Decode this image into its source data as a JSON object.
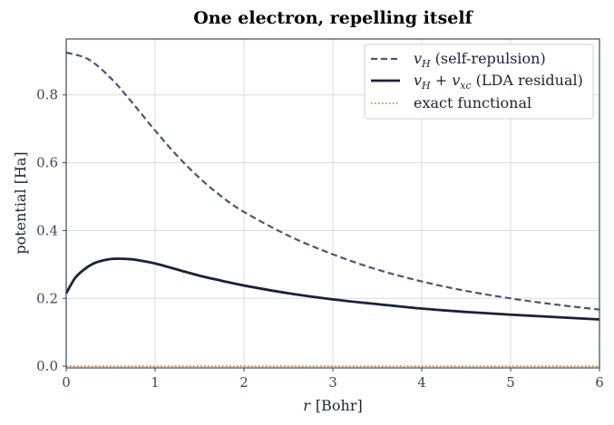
{
  "chart_data": {
    "type": "line",
    "title": "One electron, repelling itself",
    "xlabel_var": "r",
    "xlabel_unit": "[Bohr]",
    "ylabel": "potential  [Ha]",
    "xlim": [
      0,
      6
    ],
    "ylim": [
      -0.005,
      0.965
    ],
    "xticks": [
      "0",
      "1",
      "2",
      "3",
      "4",
      "5",
      "6"
    ],
    "yticks": [
      "0.0",
      "0.2",
      "0.4",
      "0.6",
      "0.8"
    ],
    "grid": true,
    "legend_position": "top-right",
    "series": [
      {
        "name": "v_H (self-repulsion)",
        "legend_math": "v",
        "legend_sub": "H",
        "legend_text": "(self-repulsion)",
        "style": "dashed",
        "color": "#4a5572",
        "x": [
          0,
          0.25,
          0.5,
          0.75,
          1.0,
          1.25,
          1.5,
          1.75,
          2.0,
          2.5,
          3.0,
          3.5,
          4.0,
          4.5,
          5.0,
          5.5,
          6.0
        ],
        "y": [
          0.925,
          0.905,
          0.85,
          0.775,
          0.695,
          0.62,
          0.555,
          0.5,
          0.455,
          0.385,
          0.33,
          0.285,
          0.25,
          0.222,
          0.2,
          0.182,
          0.167
        ]
      },
      {
        "name": "v_H + v_xc (LDA residual)",
        "legend_math": "v",
        "legend_sub": "H",
        "legend_plus": " + ",
        "legend_math2": "v",
        "legend_sub2": "xc",
        "legend_text": "(LDA residual)",
        "style": "solid",
        "color": "#1a2238",
        "x": [
          0,
          0.1,
          0.2,
          0.3,
          0.4,
          0.5,
          0.6,
          0.7,
          0.8,
          1.0,
          1.25,
          1.5,
          1.75,
          2.0,
          2.5,
          3.0,
          3.5,
          4.0,
          4.5,
          5.0,
          5.5,
          6.0
        ],
        "y": [
          0.215,
          0.26,
          0.285,
          0.302,
          0.311,
          0.316,
          0.317,
          0.316,
          0.313,
          0.303,
          0.285,
          0.267,
          0.252,
          0.238,
          0.215,
          0.197,
          0.183,
          0.17,
          0.16,
          0.152,
          0.145,
          0.138
        ]
      },
      {
        "name": "exact functional",
        "legend_text": "exact functional",
        "style": "dotted",
        "color": "#c8893a",
        "x": [
          0,
          6
        ],
        "y": [
          0,
          0
        ]
      }
    ]
  }
}
